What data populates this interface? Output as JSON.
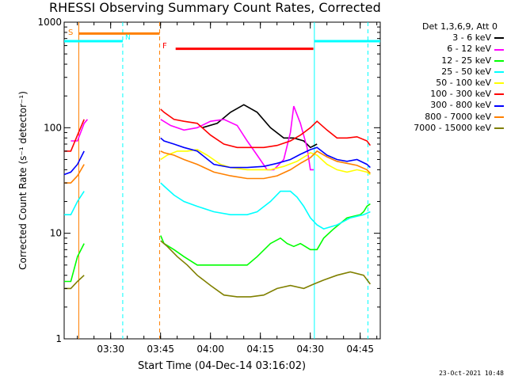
{
  "chart_data": {
    "type": "line",
    "title": "RHESSI Observing Summary Count Rates, Corrected",
    "xlabel": "Start Time (04-Dec-14 03:16:02)",
    "ylabel": "Corrected Count Rate (s⁻¹ detector⁻¹)",
    "yscale": "log",
    "ylim": [
      1,
      1000
    ],
    "xlim_minutes": [
      0,
      95
    ],
    "x_ticks": [
      {
        "label": "03:30",
        "min": 13.97
      },
      {
        "label": "03:45",
        "min": 28.97
      },
      {
        "label": "04:00",
        "min": 43.97
      },
      {
        "label": "04:15",
        "min": 58.97
      },
      {
        "label": "04:30",
        "min": 73.97
      },
      {
        "label": "04:45",
        "min": 88.97
      }
    ],
    "y_ticks": [
      {
        "label": "1",
        "value": 1
      },
      {
        "label": "10",
        "value": 10
      },
      {
        "label": "100",
        "value": 100
      },
      {
        "label": "1000",
        "value": 1000
      }
    ],
    "legend_header": "Det 1,3,6,9, Att 0",
    "legend_position": "right",
    "series": [
      {
        "name": "3 - 6 keV",
        "color": "#000000",
        "points": [
          [
            41.5,
            100
          ],
          [
            46,
            110
          ],
          [
            50,
            140
          ],
          [
            54,
            165
          ],
          [
            58,
            140
          ],
          [
            62,
            100
          ],
          [
            66,
            80
          ],
          [
            69,
            80
          ],
          [
            72,
            75
          ],
          [
            74,
            65
          ],
          [
            76,
            70
          ]
        ]
      },
      {
        "name": "6 - 12 keV",
        "color": "#ff00ff",
        "points": [
          [
            2,
            75
          ],
          [
            4,
            75
          ],
          [
            6,
            110
          ],
          [
            7,
            120
          ],
          [
            29,
            120
          ],
          [
            32,
            105
          ],
          [
            36,
            95
          ],
          [
            40,
            100
          ],
          [
            44,
            115
          ],
          [
            48,
            120
          ],
          [
            52,
            105
          ],
          [
            55,
            75
          ],
          [
            58,
            55
          ],
          [
            61,
            40
          ],
          [
            63,
            40
          ],
          [
            66,
            50
          ],
          [
            68,
            90
          ],
          [
            69,
            160
          ],
          [
            71,
            110
          ],
          [
            73,
            65
          ],
          [
            74,
            40
          ],
          [
            75,
            40
          ]
        ]
      },
      {
        "name": "12 - 25 keV",
        "color": "#00ff00",
        "points": [
          [
            0,
            3.5
          ],
          [
            2,
            3.5
          ],
          [
            4,
            6
          ],
          [
            6,
            8
          ],
          [
            29,
            9.5
          ],
          [
            30,
            8
          ],
          [
            33,
            7
          ],
          [
            36,
            6
          ],
          [
            40,
            5
          ],
          [
            45,
            5
          ],
          [
            50,
            5
          ],
          [
            55,
            5
          ],
          [
            58,
            6
          ],
          [
            62,
            8
          ],
          [
            65,
            9
          ],
          [
            67,
            8
          ],
          [
            69,
            7.5
          ],
          [
            71,
            8
          ],
          [
            74,
            7
          ],
          [
            76,
            7
          ],
          [
            78,
            9
          ],
          [
            81,
            11
          ],
          [
            85,
            14
          ],
          [
            89,
            15
          ],
          [
            90,
            16
          ],
          [
            91,
            18
          ],
          [
            92,
            19
          ]
        ]
      },
      {
        "name": "25 - 50 keV",
        "color": "#00ffff",
        "points": [
          [
            0,
            15
          ],
          [
            2,
            15
          ],
          [
            4,
            20
          ],
          [
            6,
            25
          ],
          [
            29,
            30
          ],
          [
            30,
            28
          ],
          [
            33,
            23
          ],
          [
            36,
            20
          ],
          [
            40,
            18
          ],
          [
            45,
            16
          ],
          [
            50,
            15
          ],
          [
            55,
            15
          ],
          [
            58,
            16
          ],
          [
            62,
            20
          ],
          [
            65,
            25
          ],
          [
            68,
            25
          ],
          [
            70,
            22
          ],
          [
            72,
            18
          ],
          [
            74,
            14
          ],
          [
            76,
            12
          ],
          [
            78,
            11
          ],
          [
            82,
            12
          ],
          [
            86,
            14
          ],
          [
            90,
            15
          ],
          [
            92,
            16
          ]
        ]
      },
      {
        "name": "50 - 100 keV",
        "color": "#ffff00",
        "points": [
          [
            29,
            50
          ],
          [
            31,
            55
          ],
          [
            34,
            60
          ],
          [
            37,
            60
          ],
          [
            40,
            62
          ],
          [
            43,
            55
          ],
          [
            47,
            45
          ],
          [
            50,
            42
          ],
          [
            55,
            40
          ],
          [
            58,
            40
          ],
          [
            62,
            40
          ],
          [
            66,
            43
          ],
          [
            70,
            48
          ],
          [
            73,
            55
          ],
          [
            74,
            58
          ],
          [
            76,
            55
          ],
          [
            79,
            45
          ],
          [
            82,
            40
          ],
          [
            85,
            38
          ],
          [
            88,
            40
          ],
          [
            91,
            38
          ],
          [
            92,
            36
          ]
        ]
      },
      {
        "name": "100 - 300 keV",
        "color": "#ff0000",
        "points": [
          [
            0,
            60
          ],
          [
            2,
            60
          ],
          [
            4,
            85
          ],
          [
            6,
            120
          ],
          [
            29,
            150
          ],
          [
            30,
            140
          ],
          [
            33,
            120
          ],
          [
            36,
            115
          ],
          [
            40,
            110
          ],
          [
            44,
            85
          ],
          [
            48,
            70
          ],
          [
            52,
            65
          ],
          [
            56,
            65
          ],
          [
            60,
            65
          ],
          [
            64,
            68
          ],
          [
            68,
            75
          ],
          [
            71,
            85
          ],
          [
            74,
            100
          ],
          [
            76,
            115
          ],
          [
            79,
            95
          ],
          [
            82,
            80
          ],
          [
            85,
            80
          ],
          [
            88,
            82
          ],
          [
            91,
            75
          ],
          [
            92,
            68
          ]
        ]
      },
      {
        "name": "300 - 800 keV",
        "color": "#0000ff",
        "points": [
          [
            0,
            36
          ],
          [
            2,
            38
          ],
          [
            4,
            45
          ],
          [
            6,
            60
          ],
          [
            29,
            80
          ],
          [
            30,
            75
          ],
          [
            33,
            70
          ],
          [
            36,
            65
          ],
          [
            40,
            60
          ],
          [
            45,
            45
          ],
          [
            50,
            42
          ],
          [
            55,
            42
          ],
          [
            60,
            43
          ],
          [
            64,
            46
          ],
          [
            68,
            50
          ],
          [
            71,
            56
          ],
          [
            74,
            62
          ],
          [
            76,
            65
          ],
          [
            79,
            55
          ],
          [
            82,
            50
          ],
          [
            85,
            48
          ],
          [
            88,
            50
          ],
          [
            91,
            45
          ],
          [
            92,
            42
          ]
        ]
      },
      {
        "name": "800 - 7000 keV",
        "color": "#ff8000",
        "points": [
          [
            0,
            30
          ],
          [
            2,
            30
          ],
          [
            4,
            35
          ],
          [
            6,
            45
          ],
          [
            29,
            60
          ],
          [
            30,
            58
          ],
          [
            33,
            55
          ],
          [
            36,
            50
          ],
          [
            40,
            45
          ],
          [
            45,
            38
          ],
          [
            50,
            35
          ],
          [
            55,
            33
          ],
          [
            60,
            33
          ],
          [
            64,
            35
          ],
          [
            68,
            40
          ],
          [
            71,
            46
          ],
          [
            74,
            52
          ],
          [
            76,
            60
          ],
          [
            79,
            53
          ],
          [
            82,
            48
          ],
          [
            85,
            46
          ],
          [
            88,
            44
          ],
          [
            91,
            40
          ],
          [
            92,
            37
          ]
        ]
      },
      {
        "name": "7000 - 15000 keV",
        "color": "#808000",
        "points": [
          [
            0,
            3
          ],
          [
            2,
            3
          ],
          [
            4,
            3.5
          ],
          [
            6,
            4
          ],
          [
            29,
            8.5
          ],
          [
            31,
            7.5
          ],
          [
            34,
            6
          ],
          [
            37,
            5
          ],
          [
            40,
            4
          ],
          [
            44,
            3.2
          ],
          [
            48,
            2.6
          ],
          [
            52,
            2.5
          ],
          [
            56,
            2.5
          ],
          [
            60,
            2.6
          ],
          [
            64,
            3
          ],
          [
            68,
            3.2
          ],
          [
            72,
            3
          ],
          [
            75,
            3.3
          ],
          [
            78,
            3.6
          ],
          [
            82,
            4
          ],
          [
            86,
            4.3
          ],
          [
            90,
            4
          ],
          [
            92,
            3.3
          ]
        ]
      }
    ],
    "annotations": [
      {
        "label": "S",
        "color": "#ff8000"
      },
      {
        "label": "N",
        "color": "#00ffff"
      },
      {
        "label": "F",
        "color": "#ff0000"
      }
    ],
    "observing_bars": {
      "saa": {
        "color": "#ff8000",
        "start_min": 4.4,
        "end_min": 28.7,
        "level": 780
      },
      "night": {
        "color": "#00ffff",
        "intervals": [
          [
            0,
            17.6
          ],
          [
            75.2,
            95
          ]
        ],
        "level": 660
      },
      "flare": {
        "color": "#ff0000",
        "start_min": 33.5,
        "end_min": 74.9,
        "level": 560
      }
    },
    "vertical_markers": [
      {
        "min": 4.4,
        "color": "#ff8000",
        "style": "solid"
      },
      {
        "min": 17.6,
        "color": "#00ffff",
        "style": "dashed"
      },
      {
        "min": 28.7,
        "color": "#ff8000",
        "style": "dashed"
      },
      {
        "min": 75.2,
        "color": "#00ffff",
        "style": "solid"
      },
      {
        "min": 91.3,
        "color": "#00ffff",
        "style": "dashed"
      }
    ],
    "grid": false
  },
  "footer": "23-Oct-2021 10:48"
}
